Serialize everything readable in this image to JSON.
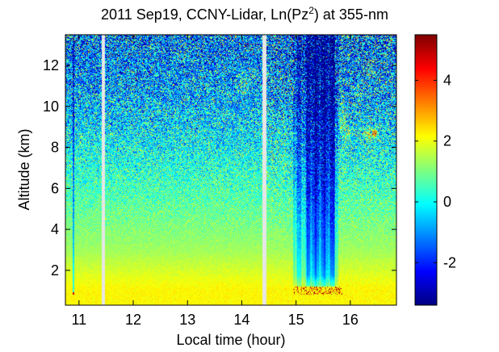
{
  "chart_data": {
    "type": "heatmap",
    "title_prefix": "2011 Sep19, CCNY-Lidar, Ln(Pz",
    "title_sup": "2",
    "title_suffix": ") at 355-nm",
    "xlabel": "Local time (hour)",
    "ylabel": "Altitude (km)",
    "xlim": [
      10.75,
      16.85
    ],
    "ylim": [
      0.3,
      13.5
    ],
    "x_ticks": [
      11,
      12,
      13,
      14,
      15,
      16
    ],
    "y_ticks": [
      2,
      4,
      6,
      8,
      10,
      12
    ],
    "data_gaps_hours": [
      [
        11.42,
        11.48
      ],
      [
        14.38,
        14.45
      ]
    ],
    "colorbar": {
      "colormap": "jet",
      "range": [
        -3.4,
        5.5
      ],
      "ticks": [
        -2,
        0,
        2,
        4
      ]
    }
  }
}
